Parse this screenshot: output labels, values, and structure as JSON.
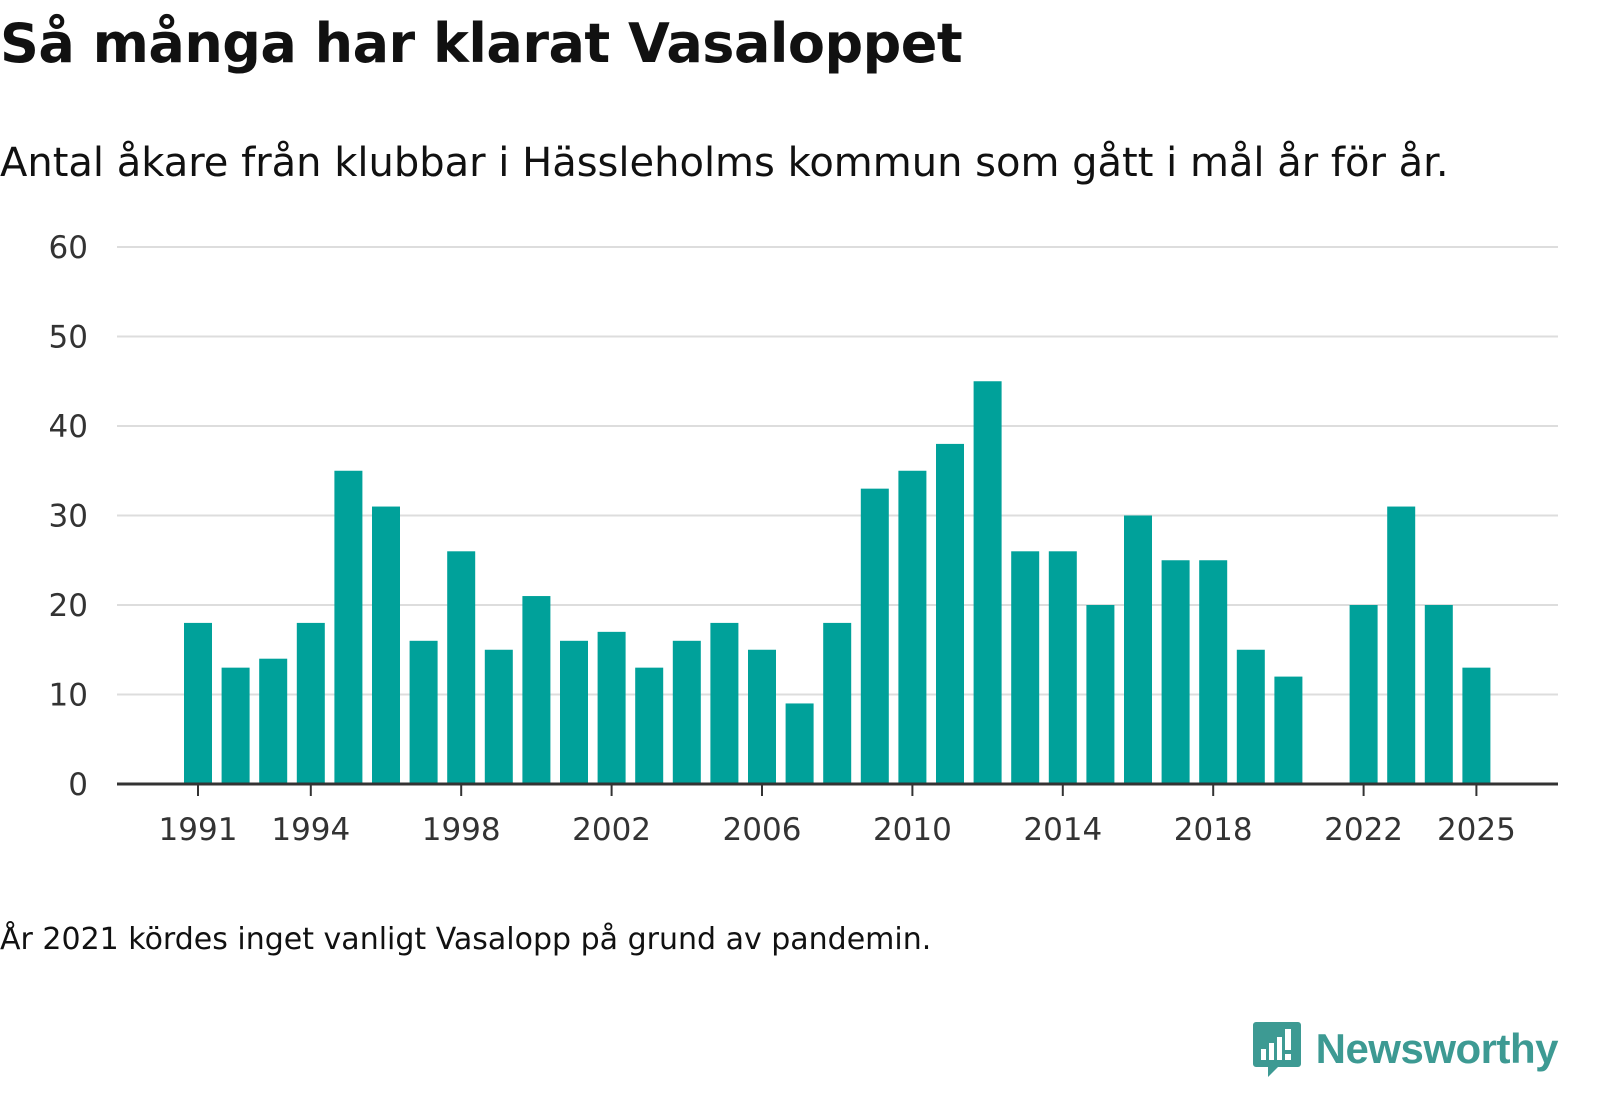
{
  "header": {
    "title": "Så många har klarat Vasaloppet",
    "subtitle": "Antal åkare från klubbar i Hässleholms kommun som gått i mål år för år."
  },
  "footnote": "År 2021 kördes inget vanligt Vasalopp på grund av pandemin.",
  "brand": {
    "name": "Newsworthy",
    "icon": "bar-chart-speech-bubble-icon",
    "color": "#3d9a93"
  },
  "colors": {
    "bar": "#00a19a",
    "grid": "#dddddd",
    "axis": "#333333"
  },
  "chart_data": {
    "type": "bar",
    "title": "Så många har klarat Vasaloppet",
    "xlabel": "",
    "ylabel": "",
    "ylim": [
      0,
      60
    ],
    "yticks": [
      0,
      10,
      20,
      30,
      40,
      50,
      60
    ],
    "xticks": [
      1991,
      1994,
      1998,
      2002,
      2006,
      2010,
      2014,
      2018,
      2022,
      2025
    ],
    "grid": true,
    "series": [
      {
        "name": "Antal åkare i mål",
        "points": [
          {
            "year": 1991,
            "value": 18
          },
          {
            "year": 1992,
            "value": 13
          },
          {
            "year": 1993,
            "value": 14
          },
          {
            "year": 1994,
            "value": 18
          },
          {
            "year": 1995,
            "value": 35
          },
          {
            "year": 1996,
            "value": 31
          },
          {
            "year": 1997,
            "value": 16
          },
          {
            "year": 1998,
            "value": 26
          },
          {
            "year": 1999,
            "value": 15
          },
          {
            "year": 2000,
            "value": 21
          },
          {
            "year": 2001,
            "value": 16
          },
          {
            "year": 2002,
            "value": 17
          },
          {
            "year": 2003,
            "value": 13
          },
          {
            "year": 2004,
            "value": 16
          },
          {
            "year": 2005,
            "value": 18
          },
          {
            "year": 2006,
            "value": 15
          },
          {
            "year": 2007,
            "value": 9
          },
          {
            "year": 2008,
            "value": 18
          },
          {
            "year": 2009,
            "value": 33
          },
          {
            "year": 2010,
            "value": 35
          },
          {
            "year": 2011,
            "value": 38
          },
          {
            "year": 2012,
            "value": 45
          },
          {
            "year": 2013,
            "value": 26
          },
          {
            "year": 2014,
            "value": 26
          },
          {
            "year": 2015,
            "value": 20
          },
          {
            "year": 2016,
            "value": 30
          },
          {
            "year": 2017,
            "value": 25
          },
          {
            "year": 2018,
            "value": 25
          },
          {
            "year": 2019,
            "value": 15
          },
          {
            "year": 2020,
            "value": 12
          },
          {
            "year": 2022,
            "value": 20
          },
          {
            "year": 2023,
            "value": 31
          },
          {
            "year": 2024,
            "value": 20
          },
          {
            "year": 2025,
            "value": 13
          }
        ]
      }
    ]
  }
}
